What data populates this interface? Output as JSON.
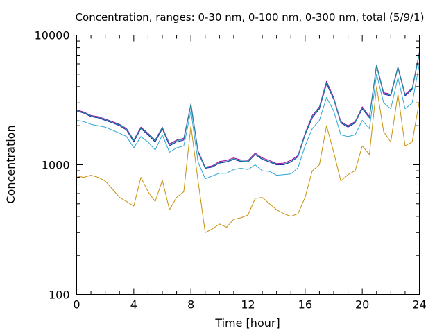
{
  "chart_data": {
    "type": "line",
    "title": "Concentration, ranges: 0-30 nm, 0-100 nm, 0-300 nm, total (5/9/1)",
    "xlabel": "Time [hour]",
    "ylabel": "Concentration",
    "x_ticks": [
      "0",
      "4",
      "8",
      "12",
      "16",
      "20",
      "24"
    ],
    "y_ticks": [
      "100",
      "1000",
      "10000"
    ],
    "xlim": [
      0,
      24
    ],
    "ylim": [
      100,
      10000
    ],
    "y_scale": "log",
    "grid": false,
    "legend": "none",
    "x": [
      0,
      0.5,
      1,
      1.5,
      2,
      2.5,
      3,
      3.5,
      4,
      4.5,
      5,
      5.5,
      6,
      6.5,
      7,
      7.5,
      8,
      8.5,
      9,
      9.5,
      10,
      10.5,
      11,
      11.5,
      12,
      12.5,
      13,
      13.5,
      14,
      14.5,
      15,
      15.5,
      16,
      16.5,
      17,
      17.5,
      18,
      18.5,
      19,
      19.5,
      20,
      20.5,
      21,
      21.5,
      22,
      22.5,
      23,
      23.5,
      24
    ],
    "series": [
      {
        "color": "#c8910a",
        "values": [
          820,
          800,
          830,
          800,
          750,
          650,
          560,
          520,
          480,
          800,
          620,
          520,
          760,
          450,
          560,
          620,
          2000,
          750,
          300,
          320,
          350,
          330,
          380,
          390,
          410,
          550,
          560,
          500,
          450,
          420,
          400,
          420,
          560,
          900,
          1000,
          2000,
          1250,
          750,
          840,
          900,
          1400,
          1200,
          4000,
          1800,
          1500,
          3500,
          1400,
          1500,
          3100
        ]
      },
      {
        "color": "#2ba6d6",
        "values": [
          2200,
          2150,
          2050,
          2000,
          1950,
          1850,
          1750,
          1650,
          1350,
          1650,
          1500,
          1300,
          1700,
          1250,
          1350,
          1400,
          2600,
          1050,
          780,
          820,
          860,
          860,
          920,
          940,
          920,
          1000,
          900,
          890,
          830,
          840,
          850,
          950,
          1400,
          1900,
          2200,
          3300,
          2600,
          1700,
          1650,
          1700,
          2200,
          1900,
          5000,
          3000,
          2700,
          4700,
          2700,
          3000,
          6000
        ]
      },
      {
        "color": "#1a1aaa",
        "values": [
          2600,
          2500,
          2350,
          2300,
          2200,
          2100,
          2000,
          1850,
          1500,
          1900,
          1700,
          1500,
          1900,
          1400,
          1500,
          1550,
          2900,
          1250,
          940,
          960,
          1030,
          1050,
          1100,
          1060,
          1050,
          1200,
          1100,
          1050,
          1000,
          1000,
          1050,
          1150,
          1700,
          2300,
          2700,
          4200,
          3200,
          2100,
          1950,
          2100,
          2700,
          2300,
          5800,
          3500,
          3400,
          5600,
          3400,
          3800,
          7200
        ]
      },
      {
        "color": "#a000a0",
        "values": [
          2650,
          2550,
          2400,
          2350,
          2250,
          2150,
          2050,
          1900,
          1550,
          1950,
          1750,
          1550,
          1950,
          1450,
          1550,
          1600,
          2950,
          1280,
          960,
          980,
          1060,
          1080,
          1130,
          1090,
          1080,
          1230,
          1130,
          1080,
          1020,
          1030,
          1080,
          1180,
          1750,
          2400,
          2800,
          4400,
          3300,
          2150,
          2000,
          2150,
          2800,
          2350,
          5900,
          3600,
          3500,
          5700,
          3500,
          3900,
          7400
        ]
      },
      {
        "color": "#159a9a",
        "values": [
          2620,
          2520,
          2380,
          2320,
          2230,
          2120,
          2030,
          1880,
          1530,
          1920,
          1730,
          1530,
          1930,
          1430,
          1530,
          1580,
          2920,
          1260,
          950,
          970,
          1040,
          1060,
          1110,
          1070,
          1060,
          1210,
          1110,
          1060,
          1010,
          1010,
          1060,
          1160,
          1720,
          2350,
          2750,
          4300,
          3250,
          2120,
          1980,
          2120,
          2750,
          2320,
          5850,
          3550,
          3450,
          5650,
          3450,
          3850,
          7300
        ]
      }
    ]
  }
}
